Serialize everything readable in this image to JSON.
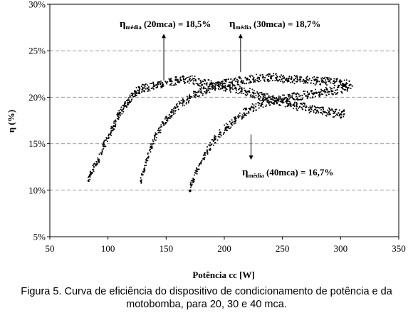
{
  "chart_data": {
    "type": "scatter",
    "xlabel": "Potência cc [W]",
    "ylabel": "η (%)",
    "xlim": [
      50,
      350
    ],
    "ylim": [
      5,
      30
    ],
    "x_ticks": [
      "50",
      "100",
      "150",
      "200",
      "250",
      "300",
      "350"
    ],
    "y_ticks": [
      "5%",
      "10%",
      "15%",
      "20%",
      "25%",
      "30%"
    ],
    "grid": "horizontal dashed",
    "legend": "none",
    "point_color": "#000000",
    "annotations": [
      {
        "symbol": "η",
        "subscript": "média",
        "text": " (20mca) = 18,5%",
        "arrow_from": [
          148,
          21.8
        ],
        "arrow_to": [
          148,
          26.6
        ]
      },
      {
        "symbol": "η",
        "subscript": "média",
        "text": " (30mca) = 18,7%",
        "arrow_from": [
          214,
          22.7
        ],
        "arrow_to": [
          214,
          26.6
        ]
      },
      {
        "symbol": "η",
        "subscript": "média",
        "text": " (40mca) = 16,7%",
        "arrow_from": [
          223,
          16.0
        ],
        "arrow_to": [
          223,
          13.5
        ]
      }
    ],
    "series": [
      {
        "values": [
          [
            83,
            11.0
          ],
          [
            85,
            11.8
          ],
          [
            88,
            12.5
          ],
          [
            92,
            13.3
          ],
          [
            96,
            14.7
          ],
          [
            100,
            15.6
          ],
          [
            103,
            16.4
          ],
          [
            106,
            17.2
          ],
          [
            109,
            18.1
          ],
          [
            112,
            18.6
          ],
          [
            115,
            19.1
          ],
          [
            118,
            19.7
          ],
          [
            121,
            20.2
          ],
          [
            124,
            20.6
          ],
          [
            127,
            20.8
          ],
          [
            131,
            21.0
          ],
          [
            135,
            21.1
          ],
          [
            140,
            21.2
          ],
          [
            145,
            21.4
          ],
          [
            150,
            21.6
          ],
          [
            155,
            21.7
          ],
          [
            160,
            21.8
          ],
          [
            165,
            21.9
          ],
          [
            170,
            21.9
          ],
          [
            175,
            21.8
          ],
          [
            180,
            21.6
          ],
          [
            185,
            21.5
          ],
          [
            190,
            21.3
          ],
          [
            195,
            21.2
          ],
          [
            200,
            21.1
          ],
          [
            205,
            21.0
          ],
          [
            210,
            20.9
          ],
          [
            215,
            20.7
          ],
          [
            220,
            20.6
          ],
          [
            225,
            20.4
          ],
          [
            230,
            20.2
          ],
          [
            235,
            20.0
          ],
          [
            240,
            19.8
          ],
          [
            245,
            19.6
          ],
          [
            250,
            19.5
          ],
          [
            255,
            19.3
          ],
          [
            260,
            19.1
          ],
          [
            265,
            19.0
          ],
          [
            270,
            18.9
          ],
          [
            275,
            18.7
          ],
          [
            280,
            18.6
          ],
          [
            285,
            18.5
          ],
          [
            290,
            18.4
          ],
          [
            295,
            18.3
          ],
          [
            300,
            18.2
          ],
          [
            303,
            18.2
          ]
        ]
      },
      {
        "values": [
          [
            128,
            11.0
          ],
          [
            131,
            12.2
          ],
          [
            134,
            13.5
          ],
          [
            137,
            14.6
          ],
          [
            140,
            15.6
          ],
          [
            144,
            16.4
          ],
          [
            148,
            17.2
          ],
          [
            152,
            17.8
          ],
          [
            156,
            18.4
          ],
          [
            160,
            19.0
          ],
          [
            165,
            19.5
          ],
          [
            170,
            19.9
          ],
          [
            175,
            20.3
          ],
          [
            180,
            20.6
          ],
          [
            185,
            20.8
          ],
          [
            190,
            21.1
          ],
          [
            195,
            21.3
          ],
          [
            200,
            21.5
          ],
          [
            205,
            21.6
          ],
          [
            210,
            21.7
          ],
          [
            215,
            21.8
          ],
          [
            220,
            21.9
          ],
          [
            225,
            22.0
          ],
          [
            230,
            22.1
          ],
          [
            235,
            22.1
          ],
          [
            240,
            22.1
          ],
          [
            245,
            22.1
          ],
          [
            250,
            22.0
          ],
          [
            255,
            22.0
          ],
          [
            260,
            21.9
          ],
          [
            265,
            21.9
          ],
          [
            270,
            21.8
          ],
          [
            275,
            21.8
          ],
          [
            280,
            21.7
          ],
          [
            285,
            21.7
          ],
          [
            290,
            21.7
          ],
          [
            295,
            21.6
          ],
          [
            300,
            21.6
          ],
          [
            305,
            21.5
          ],
          [
            310,
            21.2
          ]
        ]
      },
      {
        "values": [
          [
            170,
            10.0
          ],
          [
            173,
            11.0
          ],
          [
            176,
            12.0
          ],
          [
            180,
            13.0
          ],
          [
            184,
            14.0
          ],
          [
            188,
            14.8
          ],
          [
            192,
            15.5
          ],
          [
            197,
            16.2
          ],
          [
            202,
            16.8
          ],
          [
            207,
            17.3
          ],
          [
            212,
            17.8
          ],
          [
            217,
            18.3
          ],
          [
            222,
            18.7
          ],
          [
            227,
            19.0
          ],
          [
            232,
            19.3
          ],
          [
            237,
            19.5
          ],
          [
            242,
            19.7
          ],
          [
            247,
            19.8
          ],
          [
            252,
            19.9
          ],
          [
            257,
            20.0
          ],
          [
            262,
            20.1
          ],
          [
            267,
            20.2
          ],
          [
            272,
            20.3
          ],
          [
            277,
            20.4
          ],
          [
            282,
            20.5
          ],
          [
            287,
            20.6
          ],
          [
            292,
            20.7
          ],
          [
            297,
            20.8
          ],
          [
            302,
            20.9
          ],
          [
            306,
            21.0
          ]
        ]
      }
    ]
  },
  "caption": {
    "line1": "Figura 5. Curva de eficiência do dispositivo de condicionamento de potência e da",
    "line2": "motobomba, para 20, 30 e 40 mca."
  }
}
